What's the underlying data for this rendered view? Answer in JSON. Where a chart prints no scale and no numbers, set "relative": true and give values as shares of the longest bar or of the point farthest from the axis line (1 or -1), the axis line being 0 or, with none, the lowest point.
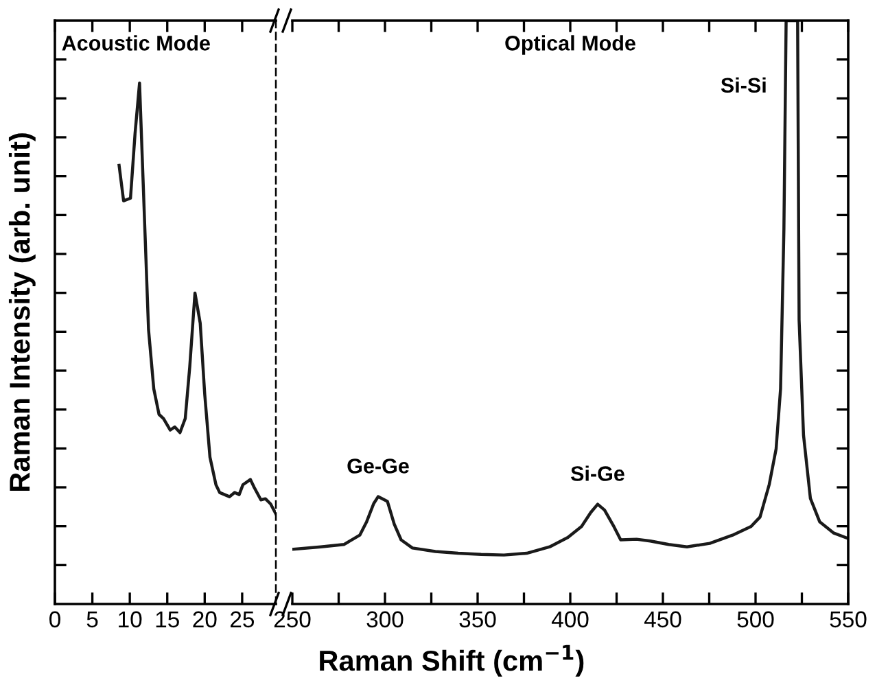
{
  "chart_data": [
    {
      "type": "line",
      "title": "Acoustic Mode",
      "ylabel": "Raman Intensity (arb. unit)",
      "relative": true,
      "xlim": [
        0,
        29.5
      ],
      "xticks": [
        0,
        5,
        10,
        15,
        20,
        25
      ],
      "grid": false,
      "legend": false,
      "series": [
        {
          "color": "#1a1a1a",
          "x": [
            8.57,
            9.17,
            10.09,
            10.7,
            11.3,
            11.9,
            12.5,
            13.2,
            13.9,
            14.5,
            15.4,
            16.0,
            16.7,
            17.4,
            18.0,
            18.7,
            19.4,
            20.0,
            20.7,
            21.5,
            22.0,
            23.3,
            24.0,
            24.6,
            25.1,
            26.1,
            26.6,
            27.5,
            28.1,
            28.8,
            29.5
          ],
          "values": [
            0.842,
            0.774,
            0.779,
            0.903,
            1.0,
            0.763,
            0.527,
            0.413,
            0.364,
            0.356,
            0.334,
            0.34,
            0.329,
            0.356,
            0.455,
            0.597,
            0.539,
            0.403,
            0.282,
            0.229,
            0.214,
            0.206,
            0.214,
            0.21,
            0.229,
            0.239,
            0.224,
            0.2,
            0.202,
            0.192,
            0.173
          ]
        }
      ]
    },
    {
      "type": "line",
      "title": "Optical Mode",
      "xlabel": "Raman Shift (cm$^{−1}$)",
      "relative": true,
      "xlim": [
        250,
        550
      ],
      "grid": false,
      "legend": false,
      "xticks": [
        250,
        {
          "value": 275,
          "label": null
        },
        300,
        {
          "value": 325,
          "label": null
        },
        350,
        {
          "value": 375,
          "label": null
        },
        400,
        {
          "value": 425,
          "label": null
        },
        450,
        {
          "value": 475,
          "label": null
        },
        500,
        {
          "value": 525,
          "label": null
        },
        550
      ],
      "annotations": [
        {
          "text": "Ge-Ge",
          "x": 296.3,
          "y": 0.184
        },
        {
          "text": "Si-Ge",
          "x": 414.8,
          "y": 0.171
        },
        {
          "text": "Si-Si",
          "x": 516.5,
          "y": 1.0
        }
      ],
      "series": [
        {
          "color": "#1a1a1a",
          "x": [
            250.6,
            265.4,
            277.8,
            286.4,
            290.1,
            293.9,
            296.3,
            301.3,
            305.0,
            308.7,
            314.8,
            327.2,
            339.5,
            351.9,
            364.2,
            376.5,
            388.9,
            398.7,
            406.1,
            411.1,
            414.8,
            418.5,
            423.5,
            427.2,
            435.8,
            443.2,
            453.1,
            463.0,
            475.3,
            487.6,
            497.6,
            502.4,
            507.4,
            511.1,
            513.5,
            515.3,
            516.5,
            522.7,
            523.5,
            525.9,
            529.6,
            534.6,
            542.0,
            549.4
          ],
          "values": [
            0.094,
            0.098,
            0.102,
            0.118,
            0.141,
            0.172,
            0.184,
            0.176,
            0.137,
            0.11,
            0.096,
            0.09,
            0.087,
            0.085,
            0.084,
            0.087,
            0.098,
            0.114,
            0.133,
            0.157,
            0.171,
            0.161,
            0.133,
            0.11,
            0.111,
            0.108,
            0.102,
            0.098,
            0.104,
            0.118,
            0.133,
            0.149,
            0.205,
            0.266,
            0.369,
            0.642,
            1.0,
            1.0,
            0.487,
            0.289,
            0.181,
            0.141,
            0.122,
            0.113
          ]
        }
      ]
    }
  ]
}
